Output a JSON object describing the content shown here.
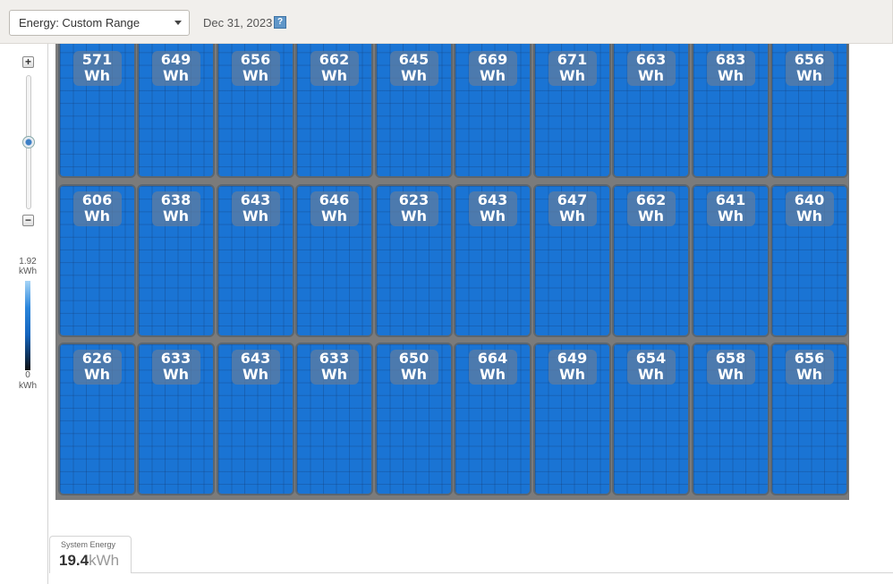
{
  "header": {
    "dropdown_value": "Energy: Custom Range",
    "date": "Dec 31, 2023",
    "help_label": "?"
  },
  "zoom": {
    "plus_label": "+",
    "minus_label": "−",
    "level_fraction": 0.5
  },
  "legend": {
    "max_value": "1.92",
    "max_unit": "kWh",
    "min_value": "0",
    "min_unit": "kWh"
  },
  "panels": {
    "rows": [
      [
        {
          "value": "571",
          "unit": "Wh"
        },
        {
          "value": "649",
          "unit": "Wh"
        },
        {
          "value": "656",
          "unit": "Wh"
        },
        {
          "value": "662",
          "unit": "Wh"
        },
        {
          "value": "645",
          "unit": "Wh"
        },
        {
          "value": "669",
          "unit": "Wh"
        },
        {
          "value": "671",
          "unit": "Wh"
        },
        {
          "value": "663",
          "unit": "Wh"
        },
        {
          "value": "683",
          "unit": "Wh"
        },
        {
          "value": "656",
          "unit": "Wh"
        }
      ],
      [
        {
          "value": "606",
          "unit": "Wh"
        },
        {
          "value": "638",
          "unit": "Wh"
        },
        {
          "value": "643",
          "unit": "Wh"
        },
        {
          "value": "646",
          "unit": "Wh"
        },
        {
          "value": "623",
          "unit": "Wh"
        },
        {
          "value": "643",
          "unit": "Wh"
        },
        {
          "value": "647",
          "unit": "Wh"
        },
        {
          "value": "662",
          "unit": "Wh"
        },
        {
          "value": "641",
          "unit": "Wh"
        },
        {
          "value": "640",
          "unit": "Wh"
        }
      ],
      [
        {
          "value": "626",
          "unit": "Wh"
        },
        {
          "value": "633",
          "unit": "Wh"
        },
        {
          "value": "643",
          "unit": "Wh"
        },
        {
          "value": "633",
          "unit": "Wh"
        },
        {
          "value": "650",
          "unit": "Wh"
        },
        {
          "value": "664",
          "unit": "Wh"
        },
        {
          "value": "649",
          "unit": "Wh"
        },
        {
          "value": "654",
          "unit": "Wh"
        },
        {
          "value": "658",
          "unit": "Wh"
        },
        {
          "value": "656",
          "unit": "Wh"
        }
      ]
    ]
  },
  "system_energy": {
    "title": "System Energy",
    "value": "19.4",
    "unit": "kWh"
  },
  "colors": {
    "panel_fill": "#1a74d4",
    "array_background": "#7b7b7b"
  }
}
